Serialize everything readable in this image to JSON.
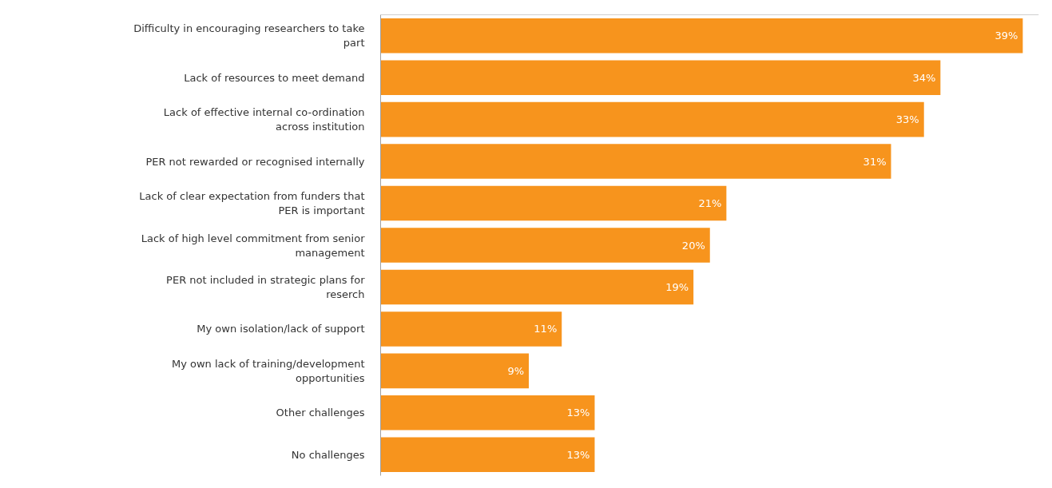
{
  "chart_data": {
    "type": "bar",
    "orientation": "horizontal",
    "color": "#f7941d",
    "categories": [
      "Difficulty in encouraging researchers to take part",
      "Lack of resources to meet demand",
      "Lack of effective internal co-ordination across institution",
      "PER not rewarded or recognised internally",
      "Lack of clear expectation from funders that PER is important",
      "Lack of high level commitment from senior management",
      "PER not included in strategic plans for reserch",
      "My own isolation/lack of support",
      "My own lack of training/development opportunities",
      "Other challenges",
      "No challenges"
    ],
    "values": [
      39,
      34,
      33,
      31,
      21,
      20,
      19,
      11,
      9,
      13,
      13
    ],
    "value_labels": [
      "39%",
      "34%",
      "33%",
      "31%",
      "21%",
      "20%",
      "19%",
      "11%",
      "9%",
      "13%",
      "13%"
    ]
  }
}
